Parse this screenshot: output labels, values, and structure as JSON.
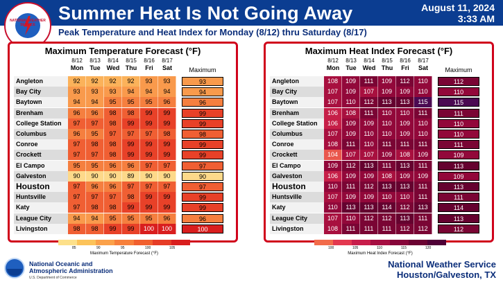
{
  "header": {
    "title": "Summer Heat Is Not Going Away",
    "date": "August 11, 2024",
    "time": "3:33 AM",
    "subtitle": "Peak Temperature and Heat Index for Monday (8/12) thru Saturday (8/17)"
  },
  "logo": {
    "ring_text": "NATIONAL WEATHER SERVICE"
  },
  "days": [
    {
      "date": "8/12",
      "dow": "Mon"
    },
    {
      "date": "8/13",
      "dow": "Tue"
    },
    {
      "date": "8/14",
      "dow": "Wed"
    },
    {
      "date": "8/15",
      "dow": "Thu"
    },
    {
      "date": "8/16",
      "dow": "Fri"
    },
    {
      "date": "8/17",
      "dow": "Sat"
    }
  ],
  "cities": [
    "Angleton",
    "Bay City",
    "Baytown",
    "Brenham",
    "College Station",
    "Columbus",
    "Conroe",
    "Crockett",
    "El Campo",
    "Galveston",
    "Houston",
    "Huntsville",
    "Katy",
    "League City",
    "Livingston"
  ],
  "temperature": {
    "title": "Maximum Temperature Forecast (°F)",
    "max_label": "Maximum",
    "values": [
      [
        92,
        92,
        92,
        92,
        93,
        93
      ],
      [
        93,
        93,
        93,
        94,
        94,
        94
      ],
      [
        94,
        94,
        95,
        95,
        95,
        96
      ],
      [
        96,
        96,
        98,
        98,
        99,
        99
      ],
      [
        97,
        97,
        98,
        99,
        99,
        99
      ],
      [
        96,
        95,
        97,
        97,
        97,
        98
      ],
      [
        97,
        98,
        98,
        99,
        99,
        99
      ],
      [
        97,
        97,
        98,
        99,
        99,
        99
      ],
      [
        95,
        95,
        96,
        96,
        97,
        97
      ],
      [
        90,
        90,
        90,
        89,
        90,
        90
      ],
      [
        97,
        96,
        96,
        97,
        97,
        97
      ],
      [
        97,
        97,
        97,
        98,
        99,
        99
      ],
      [
        97,
        98,
        98,
        99,
        99,
        99
      ],
      [
        94,
        94,
        95,
        95,
        95,
        96
      ],
      [
        98,
        98,
        99,
        99,
        100,
        100
      ]
    ],
    "maximum": [
      93,
      94,
      96,
      99,
      99,
      98,
      99,
      99,
      97,
      90,
      97,
      99,
      99,
      96,
      100
    ],
    "scale_title": "Maximum Temperature Forecast (°F)",
    "scale_ticks": [
      "85",
      "90",
      "95",
      "100",
      "105"
    ],
    "scale_colors": [
      "#fde08a",
      "#fcc35a",
      "#fba14a",
      "#f7803c",
      "#f1602f",
      "#e63c26",
      "#d91e1e"
    ]
  },
  "heat_index": {
    "title": "Maximum Heat Index Forecast (°F)",
    "max_label": "Maximum",
    "values": [
      [
        108,
        109,
        111,
        109,
        112,
        110
      ],
      [
        107,
        109,
        107,
        109,
        109,
        110
      ],
      [
        107,
        110,
        112,
        113,
        113,
        115
      ],
      [
        106,
        108,
        111,
        110,
        110,
        111
      ],
      [
        106,
        109,
        109,
        110,
        109,
        110
      ],
      [
        107,
        109,
        110,
        110,
        109,
        110
      ],
      [
        108,
        111,
        110,
        111,
        111,
        111
      ],
      [
        104,
        107,
        107,
        109,
        108,
        109
      ],
      [
        109,
        112,
        113,
        111,
        113,
        111
      ],
      [
        106,
        109,
        109,
        108,
        109,
        109
      ],
      [
        110,
        111,
        112,
        113,
        113,
        111
      ],
      [
        107,
        109,
        109,
        110,
        110,
        111
      ],
      [
        110,
        113,
        113,
        114,
        112,
        113
      ],
      [
        107,
        110,
        112,
        112,
        113,
        111
      ],
      [
        108,
        111,
        111,
        111,
        112,
        112
      ]
    ],
    "maximum": [
      112,
      110,
      115,
      111,
      110,
      110,
      111,
      109,
      113,
      109,
      113,
      111,
      114,
      113,
      112
    ],
    "scale_title": "Maximum Heat Index Forecast (°F)",
    "scale_ticks": [
      "100",
      "105",
      "110",
      "115",
      "120"
    ],
    "scale_colors": [
      "#f26b4a",
      "#e3384f",
      "#c71d4a",
      "#a60e42",
      "#87063a",
      "#6b0332",
      "#4f0036"
    ]
  },
  "footer": {
    "noaa_line1": "National Oceanic and",
    "noaa_line2": "Atmospheric Administration",
    "noaa_line3": "U.S. Department of Commerce",
    "nws_line1": "National Weather Service",
    "nws_line2": "Houston/Galveston, TX"
  }
}
